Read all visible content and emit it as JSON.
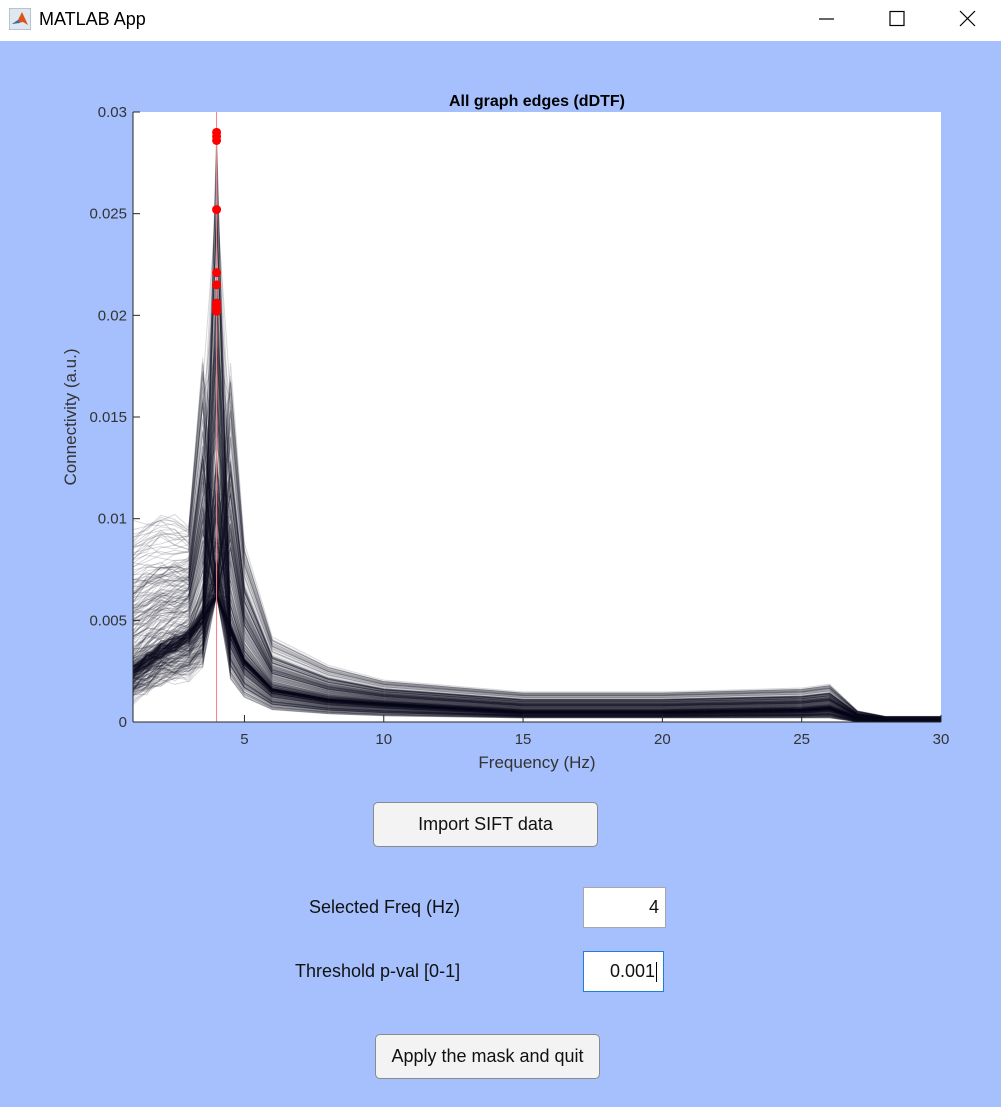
{
  "window": {
    "title": "MATLAB App"
  },
  "chart_data": {
    "type": "line",
    "title": "All graph edges (dDTF)",
    "xlabel": "Frequency (Hz)",
    "ylabel": "Connectivity (a.u.)",
    "xlim": [
      1,
      30
    ],
    "ylim": [
      0,
      0.03
    ],
    "x_ticks": [
      5,
      10,
      15,
      20,
      25,
      30
    ],
    "x_tick_labels": [
      "5",
      "10",
      "15",
      "20",
      "25",
      "30"
    ],
    "y_ticks": [
      0,
      0.005,
      0.01,
      0.015,
      0.02,
      0.025,
      0.03
    ],
    "y_tick_labels": [
      "0",
      "0.005",
      "0.01",
      "0.015",
      "0.02",
      "0.025",
      "0.03"
    ],
    "grid": false,
    "line_color": "#0b0b1e",
    "series_note_count": 400,
    "selected_freq_line": {
      "x": 4,
      "color": "#f08080"
    },
    "highlight_points": {
      "color": "#ff0000",
      "x": 4,
      "y": [
        0.029,
        0.0288,
        0.0286,
        0.0252,
        0.0221,
        0.0215,
        0.0206,
        0.0204,
        0.0202
      ]
    },
    "envelope": {
      "x": [
        1,
        2,
        3,
        4,
        5,
        6,
        8,
        10,
        15,
        20,
        25,
        26,
        27,
        28,
        30
      ],
      "median": [
        0.0025,
        0.0035,
        0.0042,
        0.0062,
        0.003,
        0.0016,
        0.0011,
        0.0009,
        0.0005,
        0.0005,
        0.0006,
        0.0007,
        0.0002,
        0.0001,
        0.0001
      ],
      "upper": [
        0.0105,
        0.011,
        0.0105,
        0.029,
        0.0095,
        0.0045,
        0.003,
        0.0022,
        0.0016,
        0.0016,
        0.0018,
        0.002,
        0.0006,
        0.0003,
        0.0003
      ],
      "lower": [
        0.0012,
        0.002,
        0.0022,
        0.003,
        0.0012,
        0.0006,
        0.0004,
        0.0003,
        0.0002,
        0.0002,
        0.0002,
        0.0002,
        0.0,
        0.0,
        0.0
      ]
    }
  },
  "controls": {
    "import_button": "Import SIFT data",
    "freq_label": "Selected Freq (Hz)",
    "freq_value": "4",
    "threshold_label": "Threshold p-val [0-1]",
    "threshold_value": "0.001",
    "apply_button": "Apply the mask and quit"
  }
}
